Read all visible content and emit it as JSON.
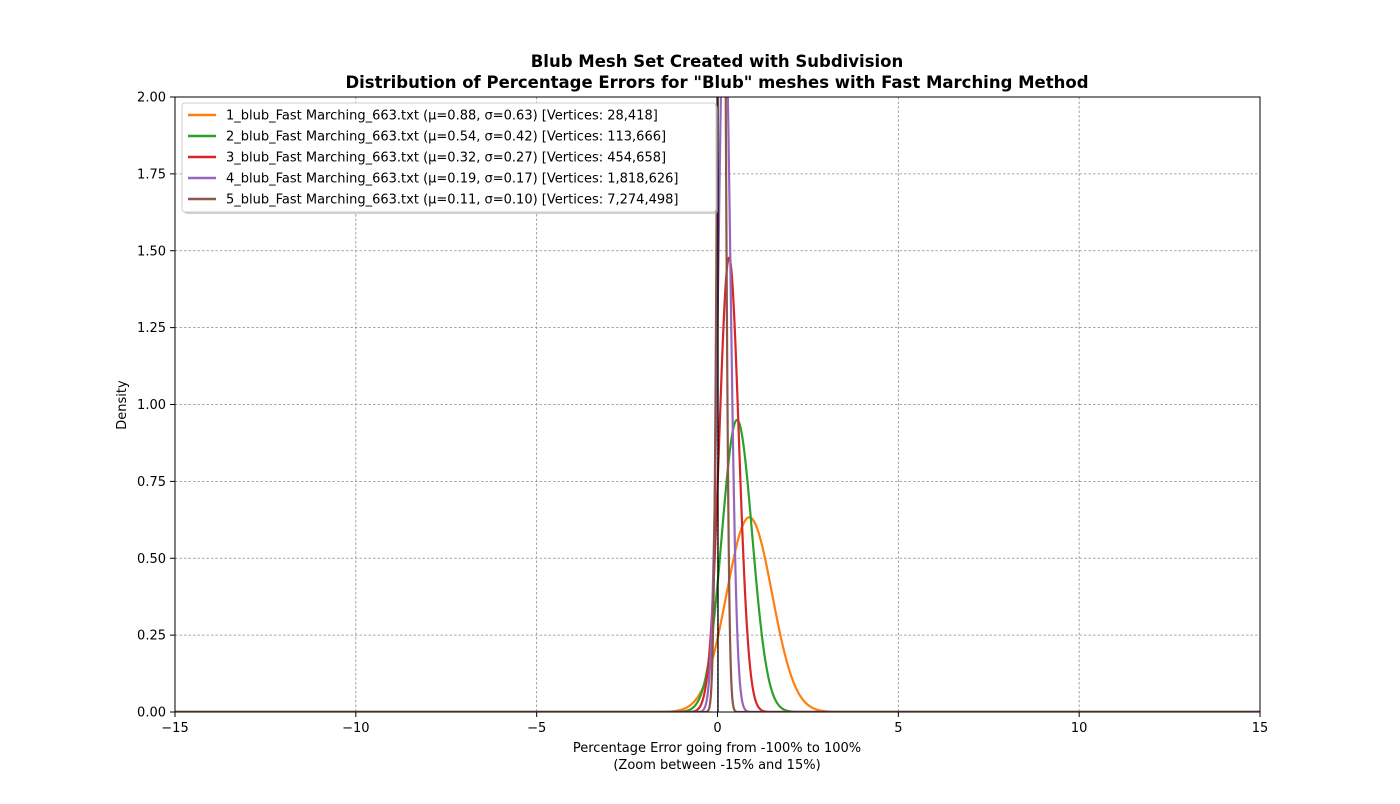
{
  "chart_data": {
    "type": "line",
    "title": "Blub Mesh Set Created with Subdivision",
    "subtitle": "Distribution of Percentage Errors for \"Blub\" meshes with Fast Marching Method",
    "xlabel": "Percentage Error going from -100% to 100%",
    "xlabel_sub": "(Zoom between -15% and 15%)",
    "ylabel": "Density",
    "xlim": [
      -15,
      15
    ],
    "ylim": [
      0,
      2.0
    ],
    "x_ticks": [
      -15,
      -10,
      -5,
      0,
      5,
      10,
      15
    ],
    "x_tick_labels": [
      "−15",
      "−10",
      "−5",
      "0",
      "5",
      "10",
      "15"
    ],
    "y_ticks": [
      0,
      0.25,
      0.5,
      0.75,
      1.0,
      1.25,
      1.5,
      1.75,
      2.0
    ],
    "y_tick_labels": [
      "0.00",
      "0.25",
      "0.50",
      "0.75",
      "1.00",
      "1.25",
      "1.50",
      "1.75",
      "2.00"
    ],
    "grid": true,
    "legend_position": "top-left",
    "vertical_reference_line_x": 0,
    "series": [
      {
        "name": "1_blub_Fast Marching_663.txt (μ=0.88, σ=0.63) [Vertices: 28,418]",
        "mu": 0.88,
        "sigma": 0.63,
        "color": "#ff7f0e"
      },
      {
        "name": "2_blub_Fast Marching_663.txt (μ=0.54, σ=0.42) [Vertices: 113,666]",
        "mu": 0.54,
        "sigma": 0.42,
        "color": "#2ca02c"
      },
      {
        "name": "3_blub_Fast Marching_663.txt (μ=0.32, σ=0.27) [Vertices: 454,658]",
        "mu": 0.32,
        "sigma": 0.27,
        "color": "#d62728"
      },
      {
        "name": "4_blub_Fast Marching_663.txt (μ=0.19, σ=0.17) [Vertices: 1,818,626]",
        "mu": 0.19,
        "sigma": 0.17,
        "color": "#9467bd"
      },
      {
        "name": "5_blub_Fast Marching_663.txt (μ=0.11, σ=0.10) [Vertices: 7,274,498]",
        "mu": 0.11,
        "sigma": 0.1,
        "color": "#8c564b"
      }
    ]
  }
}
